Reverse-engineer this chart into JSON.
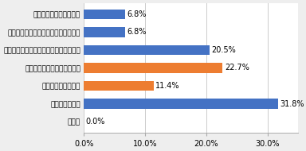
{
  "categories": [
    "許可しない雰囲気がある",
    "自分は許可したいが進められていない",
    "許可するかわからないが検討段階である",
    "許可する方向で検討している",
    "すでに許可している",
    "許可していない",
    "その他"
  ],
  "values": [
    6.8,
    6.8,
    20.5,
    22.7,
    11.4,
    31.8,
    0.0
  ],
  "colors": [
    "#4472c4",
    "#4472c4",
    "#4472c4",
    "#ed7d31",
    "#ed7d31",
    "#4472c4",
    "#4472c4"
  ],
  "xlim": [
    0,
    35
  ],
  "xticks": [
    0,
    10,
    20,
    30
  ],
  "xtick_labels": [
    "0.0%",
    "10.0%",
    "20.0%",
    "30.0%"
  ],
  "bar_height": 0.55,
  "label_fontsize": 6.5,
  "tick_fontsize": 7.0,
  "value_fontsize": 7.0,
  "background_color": "#eeeeee",
  "plot_bg_color": "#ffffff"
}
